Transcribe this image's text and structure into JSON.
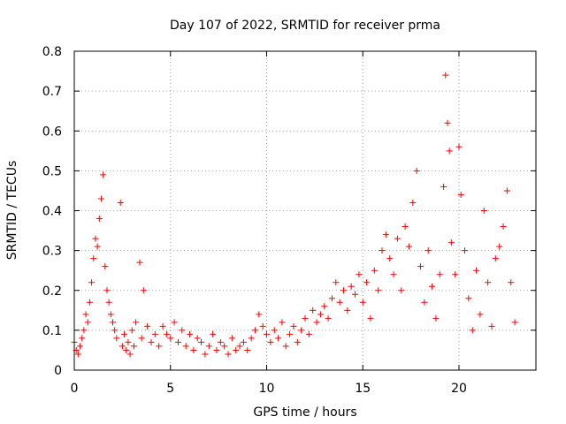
{
  "chart_data": {
    "type": "scatter",
    "title": "Day 107 of 2022, SRMTID for receiver prma",
    "xlabel": "GPS time / hours",
    "ylabel": "SRMTID / TECUs",
    "xlim": [
      0,
      24
    ],
    "ylim": [
      0,
      0.8
    ],
    "grid": true,
    "marker": "+",
    "color": "#ff0000",
    "xticks": [
      0,
      5,
      10,
      15,
      20
    ],
    "xtick_labels": [
      "0",
      "5",
      "10",
      "15",
      "20"
    ],
    "yticks": [
      0,
      0.1,
      0.2,
      0.3,
      0.4,
      0.5,
      0.6,
      0.7,
      0.8
    ],
    "ytick_labels": [
      "0",
      "0.1",
      "0.2",
      "0.3",
      "0.4",
      "0.5",
      "0.6",
      "0.7",
      "0.8"
    ],
    "series": [
      {
        "name": "SRMTID",
        "x": [
          0.0,
          0.1,
          0.2,
          0.3,
          0.4,
          0.5,
          0.6,
          0.7,
          0.8,
          0.9,
          1.0,
          1.1,
          1.2,
          1.3,
          1.4,
          1.5,
          1.6,
          1.7,
          1.8,
          1.9,
          2.0,
          2.1,
          2.2,
          2.4,
          2.5,
          2.6,
          2.7,
          2.8,
          2.9,
          3.0,
          3.1,
          3.2,
          3.4,
          3.5,
          3.6,
          3.8,
          4.0,
          4.2,
          4.4,
          4.6,
          4.8,
          5.0,
          5.2,
          5.4,
          5.6,
          5.8,
          6.0,
          6.2,
          6.4,
          6.6,
          6.8,
          7.0,
          7.2,
          7.4,
          7.6,
          7.8,
          8.0,
          8.2,
          8.4,
          8.6,
          8.8,
          9.0,
          9.2,
          9.4,
          9.6,
          9.8,
          10.0,
          10.2,
          10.4,
          10.6,
          10.8,
          11.0,
          11.2,
          11.4,
          11.6,
          11.8,
          12.0,
          12.2,
          12.4,
          12.6,
          12.8,
          13.0,
          13.2,
          13.4,
          13.6,
          13.8,
          14.0,
          14.2,
          14.4,
          14.6,
          14.8,
          15.0,
          15.2,
          15.4,
          15.6,
          15.8,
          16.0,
          16.2,
          16.4,
          16.6,
          16.8,
          17.0,
          17.2,
          17.4,
          17.6,
          17.8,
          18.0,
          18.2,
          18.4,
          18.6,
          18.8,
          19.0,
          19.2,
          19.3,
          19.4,
          19.5,
          19.6,
          19.8,
          20.0,
          20.1,
          20.3,
          20.5,
          20.7,
          20.9,
          21.1,
          21.3,
          21.5,
          21.7,
          21.9,
          22.1,
          22.3,
          22.5,
          22.7,
          22.9
        ],
        "y": [
          0.07,
          0.05,
          0.04,
          0.06,
          0.08,
          0.1,
          0.14,
          0.12,
          0.17,
          0.22,
          0.28,
          0.33,
          0.31,
          0.38,
          0.43,
          0.49,
          0.26,
          0.2,
          0.17,
          0.14,
          0.12,
          0.1,
          0.08,
          0.42,
          0.06,
          0.09,
          0.05,
          0.07,
          0.04,
          0.1,
          0.06,
          0.12,
          0.27,
          0.08,
          0.2,
          0.11,
          0.07,
          0.09,
          0.06,
          0.11,
          0.09,
          0.08,
          0.12,
          0.07,
          0.1,
          0.06,
          0.09,
          0.05,
          0.08,
          0.07,
          0.04,
          0.06,
          0.09,
          0.05,
          0.07,
          0.06,
          0.04,
          0.08,
          0.05,
          0.06,
          0.07,
          0.05,
          0.08,
          0.1,
          0.14,
          0.11,
          0.09,
          0.07,
          0.1,
          0.08,
          0.12,
          0.06,
          0.09,
          0.11,
          0.07,
          0.1,
          0.13,
          0.09,
          0.15,
          0.12,
          0.14,
          0.16,
          0.13,
          0.18,
          0.22,
          0.17,
          0.2,
          0.15,
          0.21,
          0.19,
          0.24,
          0.17,
          0.22,
          0.13,
          0.25,
          0.2,
          0.3,
          0.34,
          0.28,
          0.24,
          0.33,
          0.2,
          0.36,
          0.31,
          0.42,
          0.5,
          0.26,
          0.17,
          0.3,
          0.21,
          0.13,
          0.24,
          0.46,
          0.74,
          0.62,
          0.55,
          0.32,
          0.24,
          0.56,
          0.44,
          0.3,
          0.18,
          0.1,
          0.25,
          0.14,
          0.4,
          0.22,
          0.11,
          0.28,
          0.31,
          0.36,
          0.45,
          0.22,
          0.12
        ]
      }
    ]
  }
}
